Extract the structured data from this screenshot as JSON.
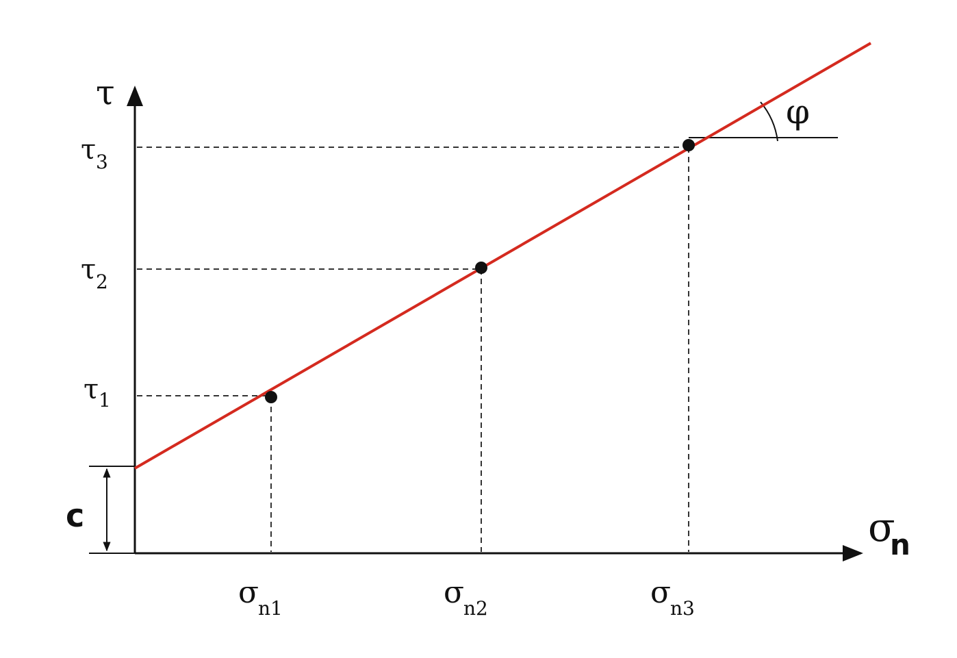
{
  "diagram": {
    "type": "mohr-coulomb-failure-envelope",
    "labels": {
      "y_axis": "τ",
      "x_axis_main": "σ",
      "x_axis_sub": "n",
      "cohesion": "c",
      "friction_angle": "φ"
    },
    "tau_labels": [
      {
        "main": "τ",
        "sub": "1"
      },
      {
        "main": "τ",
        "sub": "2"
      },
      {
        "main": "τ",
        "sub": "3"
      }
    ],
    "sigma_labels": [
      {
        "main": "σ",
        "sub": "n1"
      },
      {
        "main": "σ",
        "sub": "n2"
      },
      {
        "main": "σ",
        "sub": "n3"
      }
    ],
    "colors": {
      "envelope_line": "#d42a1f",
      "axes": "#111111",
      "guides": "#333333",
      "points": "#111111"
    }
  }
}
